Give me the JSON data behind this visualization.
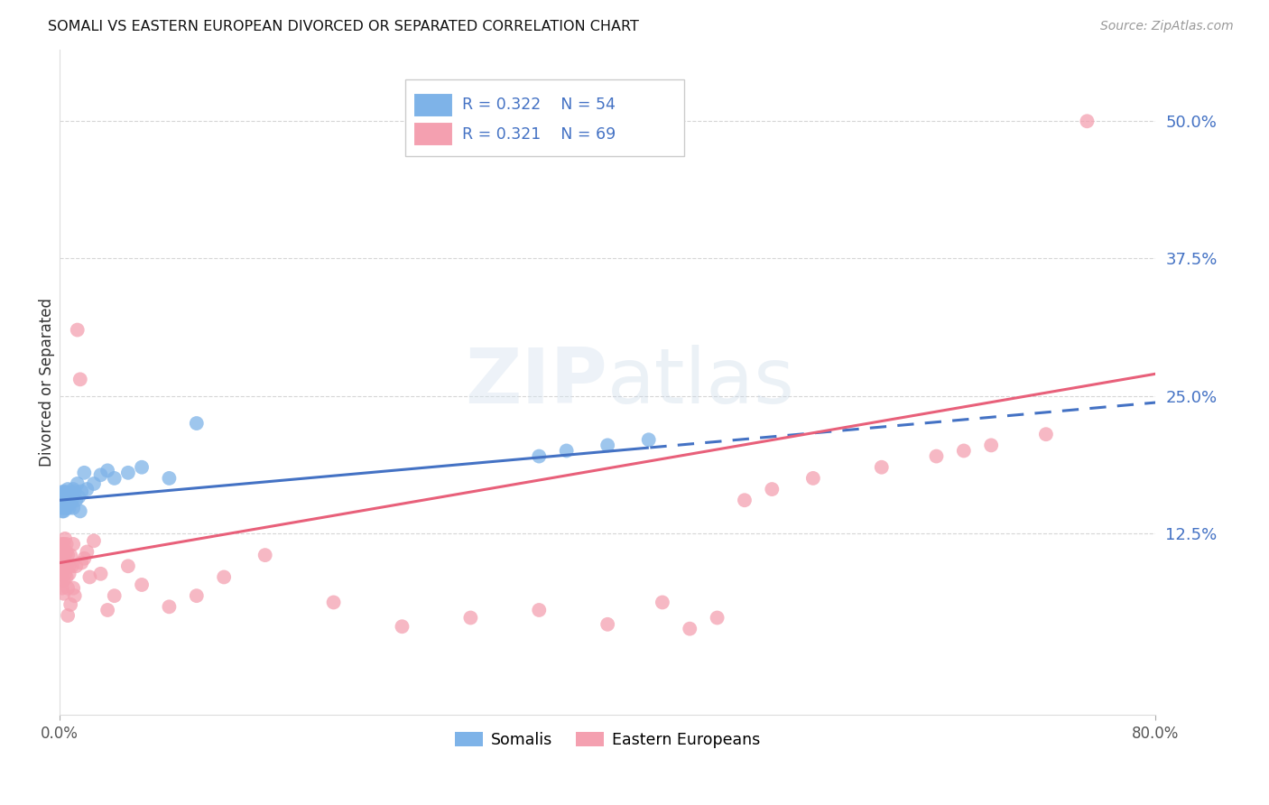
{
  "title": "SOMALI VS EASTERN EUROPEAN DIVORCED OR SEPARATED CORRELATION CHART",
  "source": "Source: ZipAtlas.com",
  "ylabel": "Divorced or Separated",
  "ytick_labels": [
    "12.5%",
    "25.0%",
    "37.5%",
    "50.0%"
  ],
  "ytick_values": [
    0.125,
    0.25,
    0.375,
    0.5
  ],
  "xlim": [
    0.0,
    0.8
  ],
  "ylim": [
    -0.04,
    0.565
  ],
  "watermark_zip": "ZIP",
  "watermark_atlas": "atlas",
  "legend_blue_r": "0.322",
  "legend_blue_n": "54",
  "legend_pink_r": "0.321",
  "legend_pink_n": "69",
  "legend_label_blue": "Somalis",
  "legend_label_pink": "Eastern Europeans",
  "somali_color": "#7EB3E8",
  "eastern_color": "#F4A0B0",
  "trend_blue_color": "#4472C4",
  "trend_pink_color": "#E8607A",
  "background_color": "#FFFFFF",
  "grid_color": "#CCCCCC",
  "somali_x": [
    0.001,
    0.001,
    0.001,
    0.002,
    0.002,
    0.002,
    0.002,
    0.002,
    0.002,
    0.003,
    0.003,
    0.003,
    0.003,
    0.003,
    0.004,
    0.004,
    0.004,
    0.004,
    0.005,
    0.005,
    0.005,
    0.005,
    0.006,
    0.006,
    0.006,
    0.007,
    0.007,
    0.007,
    0.008,
    0.008,
    0.009,
    0.009,
    0.01,
    0.01,
    0.011,
    0.012,
    0.013,
    0.014,
    0.015,
    0.016,
    0.018,
    0.02,
    0.025,
    0.03,
    0.035,
    0.04,
    0.05,
    0.06,
    0.08,
    0.1,
    0.35,
    0.37,
    0.4,
    0.43
  ],
  "somali_y": [
    0.155,
    0.16,
    0.15,
    0.158,
    0.152,
    0.148,
    0.155,
    0.162,
    0.145,
    0.153,
    0.158,
    0.15,
    0.145,
    0.163,
    0.155,
    0.148,
    0.16,
    0.158,
    0.15,
    0.155,
    0.148,
    0.162,
    0.155,
    0.15,
    0.165,
    0.148,
    0.158,
    0.16,
    0.153,
    0.162,
    0.155,
    0.16,
    0.165,
    0.148,
    0.163,
    0.155,
    0.17,
    0.158,
    0.145,
    0.163,
    0.18,
    0.165,
    0.17,
    0.178,
    0.182,
    0.175,
    0.18,
    0.185,
    0.175,
    0.225,
    0.195,
    0.2,
    0.205,
    0.21
  ],
  "eastern_x": [
    0.001,
    0.001,
    0.001,
    0.001,
    0.001,
    0.002,
    0.002,
    0.002,
    0.002,
    0.002,
    0.002,
    0.003,
    0.003,
    0.003,
    0.003,
    0.003,
    0.004,
    0.004,
    0.004,
    0.004,
    0.005,
    0.005,
    0.005,
    0.005,
    0.006,
    0.006,
    0.006,
    0.007,
    0.007,
    0.008,
    0.008,
    0.009,
    0.01,
    0.01,
    0.011,
    0.012,
    0.013,
    0.015,
    0.016,
    0.018,
    0.02,
    0.022,
    0.025,
    0.03,
    0.035,
    0.04,
    0.05,
    0.06,
    0.08,
    0.1,
    0.12,
    0.15,
    0.2,
    0.25,
    0.3,
    0.35,
    0.4,
    0.44,
    0.46,
    0.48,
    0.5,
    0.52,
    0.55,
    0.6,
    0.64,
    0.66,
    0.68,
    0.72,
    0.75
  ],
  "eastern_y": [
    0.095,
    0.088,
    0.103,
    0.11,
    0.082,
    0.098,
    0.075,
    0.105,
    0.09,
    0.115,
    0.088,
    0.095,
    0.108,
    0.082,
    0.115,
    0.07,
    0.098,
    0.105,
    0.088,
    0.12,
    0.095,
    0.108,
    0.085,
    0.115,
    0.05,
    0.075,
    0.105,
    0.088,
    0.095,
    0.06,
    0.105,
    0.095,
    0.075,
    0.115,
    0.068,
    0.095,
    0.31,
    0.265,
    0.098,
    0.102,
    0.108,
    0.085,
    0.118,
    0.088,
    0.055,
    0.068,
    0.095,
    0.078,
    0.058,
    0.068,
    0.085,
    0.105,
    0.062,
    0.04,
    0.048,
    0.055,
    0.042,
    0.062,
    0.038,
    0.048,
    0.155,
    0.165,
    0.175,
    0.185,
    0.195,
    0.2,
    0.205,
    0.215,
    0.5
  ]
}
